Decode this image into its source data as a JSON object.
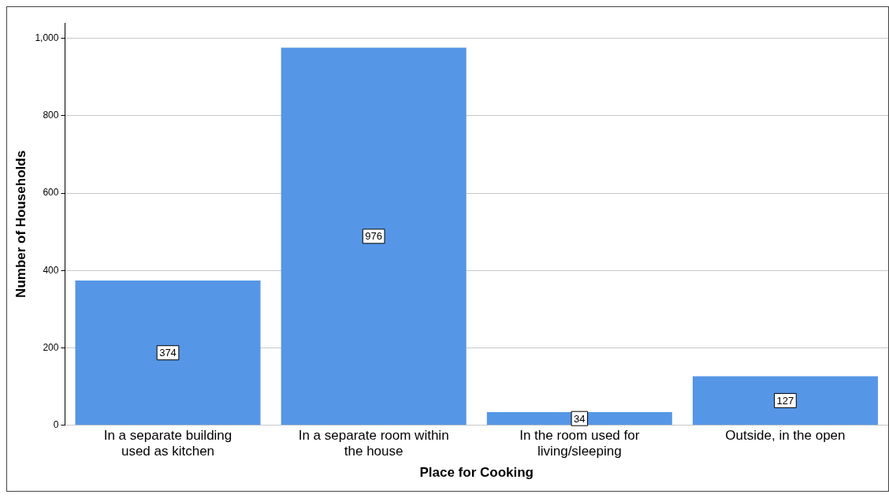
{
  "chart_data": {
    "type": "bar",
    "xlabel": "Place for Cooking",
    "ylabel": "Number of Households",
    "categories": [
      "In a separate building used as kitchen",
      "In a separate room within the house",
      "In the room used for living/sleeping",
      "Outside, in the open"
    ],
    "values": [
      374,
      976,
      34,
      127
    ],
    "color": "#5596e6",
    "ylim": [
      0,
      1040
    ],
    "yticks": [
      0,
      200,
      400,
      600,
      800,
      {
        "value": 1000,
        "label": "1,000"
      }
    ],
    "grid": "y",
    "data_labels": true
  }
}
